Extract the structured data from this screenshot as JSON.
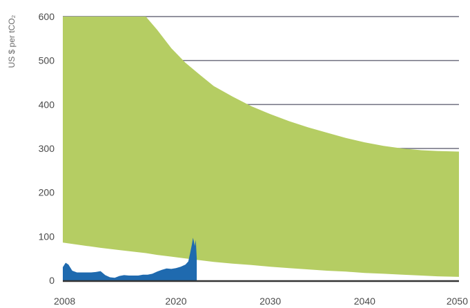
{
  "chart_data": {
    "type": "area",
    "title": "",
    "xlabel": "",
    "ylabel": "US $ per tCO₂",
    "xlim": [
      2008,
      2050
    ],
    "ylim": [
      0,
      600
    ],
    "grid": true,
    "x_ticks": [
      "2008",
      "2020",
      "2030",
      "2040",
      "2050"
    ],
    "y_ticks": [
      "0",
      "100",
      "200",
      "300",
      "400",
      "500",
      "600"
    ],
    "colors": {
      "band": "#b5cd63",
      "history": "#1f6aaf",
      "grid": "#6f6f7f",
      "axis": "#333333"
    },
    "series": [
      {
        "type": "band",
        "x": [
          2008,
          2010,
          2012,
          2014,
          2016,
          2016.8,
          2018,
          2019.5,
          2021,
          2022.5,
          2024,
          2026,
          2028,
          2030,
          2032,
          2034,
          2036,
          2038,
          2040,
          2042,
          2044,
          2046,
          2048,
          2050
        ],
        "upper": [
          600,
          600,
          600,
          600,
          600,
          600,
          570,
          528,
          495,
          468,
          442,
          418,
          396,
          378,
          362,
          348,
          336,
          324,
          314,
          306,
          300,
          296,
          294,
          293
        ],
        "lower": [
          86,
          80,
          74,
          69,
          64,
          62,
          58,
          54,
          50,
          46,
          42,
          38,
          35,
          31,
          28,
          25,
          22,
          20,
          17,
          15,
          13,
          11,
          9,
          8
        ]
      },
      {
        "type": "area",
        "x": [
          2008,
          2008.3,
          2008.6,
          2009.0,
          2009.5,
          2010.0,
          2010.5,
          2011.0,
          2011.5,
          2012.0,
          2012.5,
          2013.0,
          2013.5,
          2014.0,
          2014.5,
          2015.0,
          2015.5,
          2016.0,
          2016.5,
          2017.0,
          2017.5,
          2018.0,
          2018.5,
          2019.0,
          2019.5,
          2020.0,
          2020.5,
          2021.0,
          2021.3,
          2021.5,
          2021.7,
          2021.8,
          2021.9,
          2022.0,
          2022.1,
          2022.2
        ],
        "upper": [
          30,
          40,
          36,
          22,
          18,
          18,
          18,
          18,
          19,
          21,
          12,
          7,
          6,
          10,
          12,
          11,
          11,
          11,
          13,
          13,
          15,
          20,
          24,
          27,
          26,
          28,
          31,
          36,
          43,
          62,
          83,
          97,
          88,
          78,
          92,
          50
        ],
        "lower": [
          0,
          0,
          0,
          0,
          0,
          0,
          0,
          0,
          0,
          0,
          0,
          0,
          0,
          0,
          0,
          0,
          0,
          0,
          0,
          0,
          0,
          0,
          0,
          0,
          0,
          0,
          0,
          0,
          0,
          0,
          0,
          0,
          0,
          0,
          0,
          0
        ]
      }
    ]
  }
}
